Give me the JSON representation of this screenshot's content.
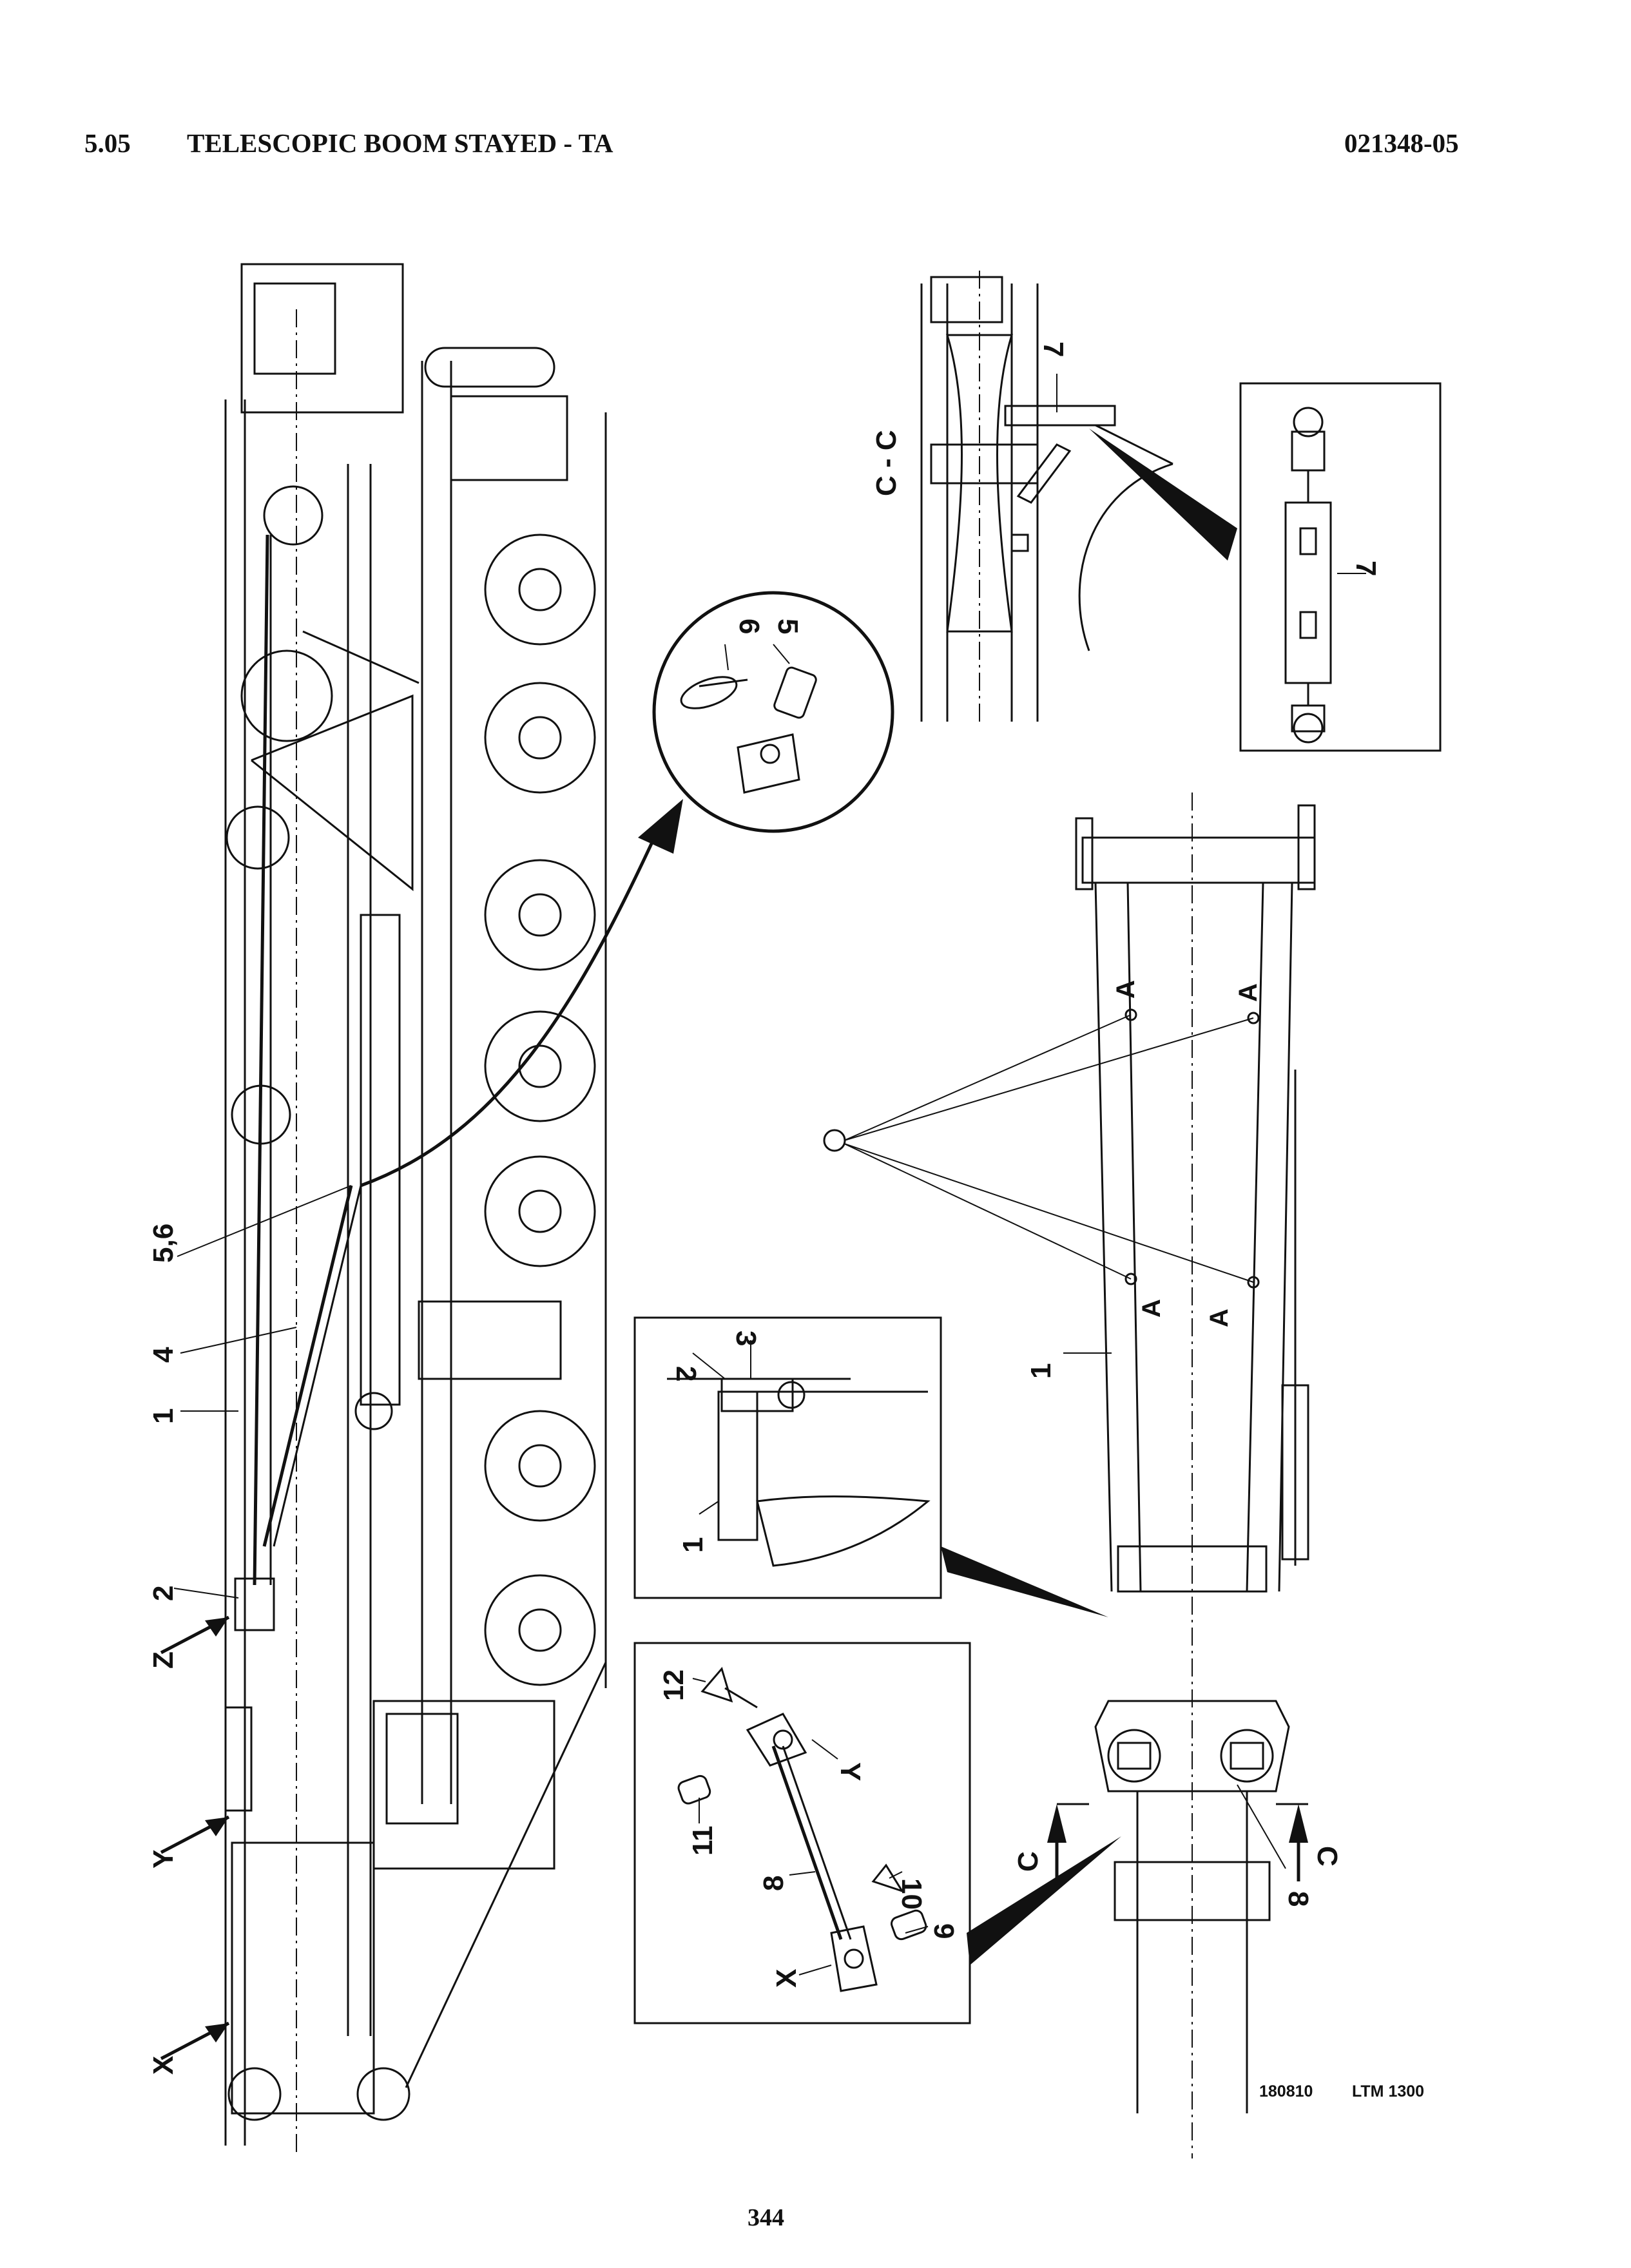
{
  "header": {
    "section_number": "5.05",
    "section_title": "TELESCOPIC BOOM STAYED - TA",
    "document_code": "021348-05"
  },
  "footer": {
    "reference_code": "180810",
    "model": "LTM 1300",
    "page_number": "344"
  },
  "callouts": {
    "main_view": [
      "5,6",
      "4",
      "1",
      "2",
      "Z",
      "Y",
      "X"
    ],
    "pin_detail": [
      "6",
      "5"
    ],
    "section_cc": [
      "C - C",
      "7"
    ],
    "turnbuckle_detail": [
      "7"
    ],
    "boom_top_view": [
      "A",
      "A",
      "A",
      "A",
      "1"
    ],
    "mount_detail": [
      "2",
      "3",
      "1"
    ],
    "stay_rod_detail": [
      "12",
      "Y",
      "11",
      "8",
      "10",
      "9",
      "X"
    ],
    "foot_section": [
      "C",
      "C",
      "8"
    ]
  },
  "colors": {
    "ink": "#111111",
    "paper": "#ffffff"
  }
}
